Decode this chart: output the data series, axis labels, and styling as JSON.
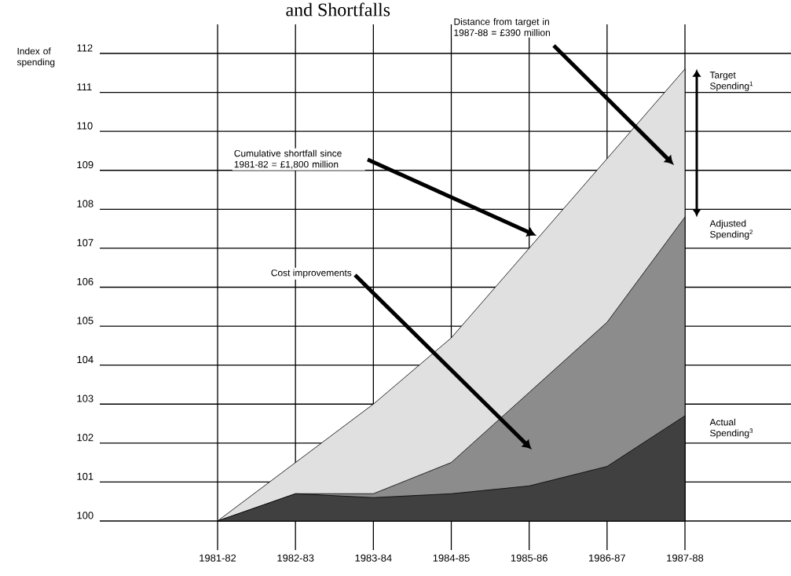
{
  "chart_data": {
    "type": "area",
    "title": "and Shortfalls",
    "ylabel": "Index of spending",
    "categories": [
      "1981-82",
      "1982-83",
      "1983-84",
      "1984-85",
      "1985-86",
      "1986-87",
      "1987-88"
    ],
    "series": [
      {
        "name": "Target Spending$^{1}$",
        "color": "#000000",
        "values": [
          100,
          101.5,
          103,
          104.7,
          107,
          109.3,
          111.6
        ]
      },
      {
        "name": "Adjusted Spending$^{2}$",
        "color": "#000000",
        "values": [
          100,
          100.7,
          100.7,
          101.5,
          103.3,
          105.1,
          107.8
        ]
      },
      {
        "name": "Actual Spending$^{3}$",
        "color": "#000000",
        "values": [
          100,
          100.7,
          100.6,
          100.7,
          100.9,
          101.4,
          102.7
        ]
      }
    ],
    "ylim": [
      100,
      112
    ],
    "yticks": [
      100,
      101,
      102,
      103,
      104,
      105,
      106,
      107,
      108,
      109,
      110,
      111,
      112
    ],
    "grid": true,
    "annotations": [
      "Cumulative shortfall since 1981-82 = £1,800 million",
      "Cost improvements",
      "Distance from target in 1987-88 = £390 million"
    ]
  }
}
